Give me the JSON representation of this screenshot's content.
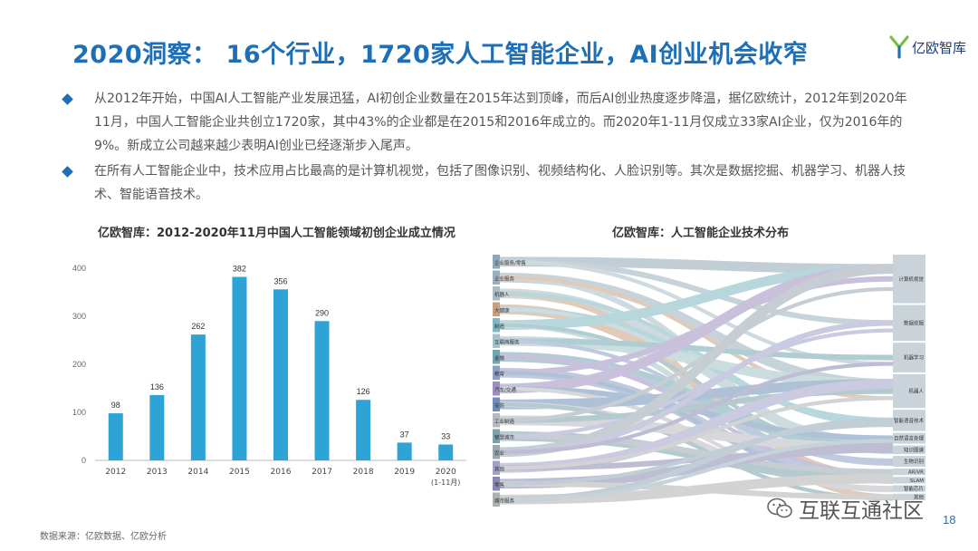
{
  "header": {
    "title": "2020洞察： 16个行业，1720家人工智能企业，AI创业机会收窄",
    "logo_text": "亿欧智库"
  },
  "bullets": [
    "从2012年开始，中国AI人工智能产业发展迅猛，AI初创企业数量在2015年达到顶峰，而后AI创业热度逐步降温，据亿欧统计，2012年到2020年11月，中国人工智能企业共创立1720家，其中43%的企业都是在2015和2016年成立的。而2020年1-11月仅成立33家AI企业，仅为2016年的9%。新成立公司越来越少表明AI创业已经逐渐步入尾声。",
    "在所有人工智能企业中，技术应用占比最高的是计算机视觉，包括了图像识别、视频结构化、人脸识别等。其次是数据挖掘、机器学习、机器人技术、智能语音技术。"
  ],
  "chart_data": [
    {
      "type": "bar",
      "title": "亿欧智库：2012-2020年11月中国人工智能领域初创企业成立情况",
      "categories": [
        "2012",
        "2013",
        "2014",
        "2015",
        "2016",
        "2017",
        "2018",
        "2019",
        "2020\n(1-11月)"
      ],
      "values": [
        98,
        136,
        262,
        382,
        356,
        290,
        126,
        37,
        33
      ],
      "ylim": [
        0,
        400
      ],
      "yticks": [
        0,
        100,
        200,
        300,
        400
      ],
      "grid": false,
      "color": "#2ea3d5"
    },
    {
      "type": "sankey",
      "title": "亿欧智库：人工智能企业技术分布",
      "left_nodes": [
        "企业服务/零售",
        "企业服务",
        "机器人",
        "大健康",
        "制造",
        "互联网服务",
        "金融",
        "教育",
        "汽车/交通",
        "安防",
        "工业制造",
        "智慧城市",
        "农业",
        "其他",
        "零售",
        "城市服务"
      ],
      "right_nodes": [
        "计算机视觉",
        "数据挖掘",
        "机器学习",
        "机器人",
        "智能语音技术",
        "自然语言处理",
        "知识图谱",
        "生物识别",
        "AR/VR",
        "SLAM",
        "智能芯片",
        "其他"
      ]
    }
  ],
  "source": "数据来源：亿欧数据、亿欧分析",
  "watermark": "互联互通社区",
  "page_number": "18",
  "colors": {
    "title": "#1f6fb6",
    "bar": "#2ea3d5"
  }
}
